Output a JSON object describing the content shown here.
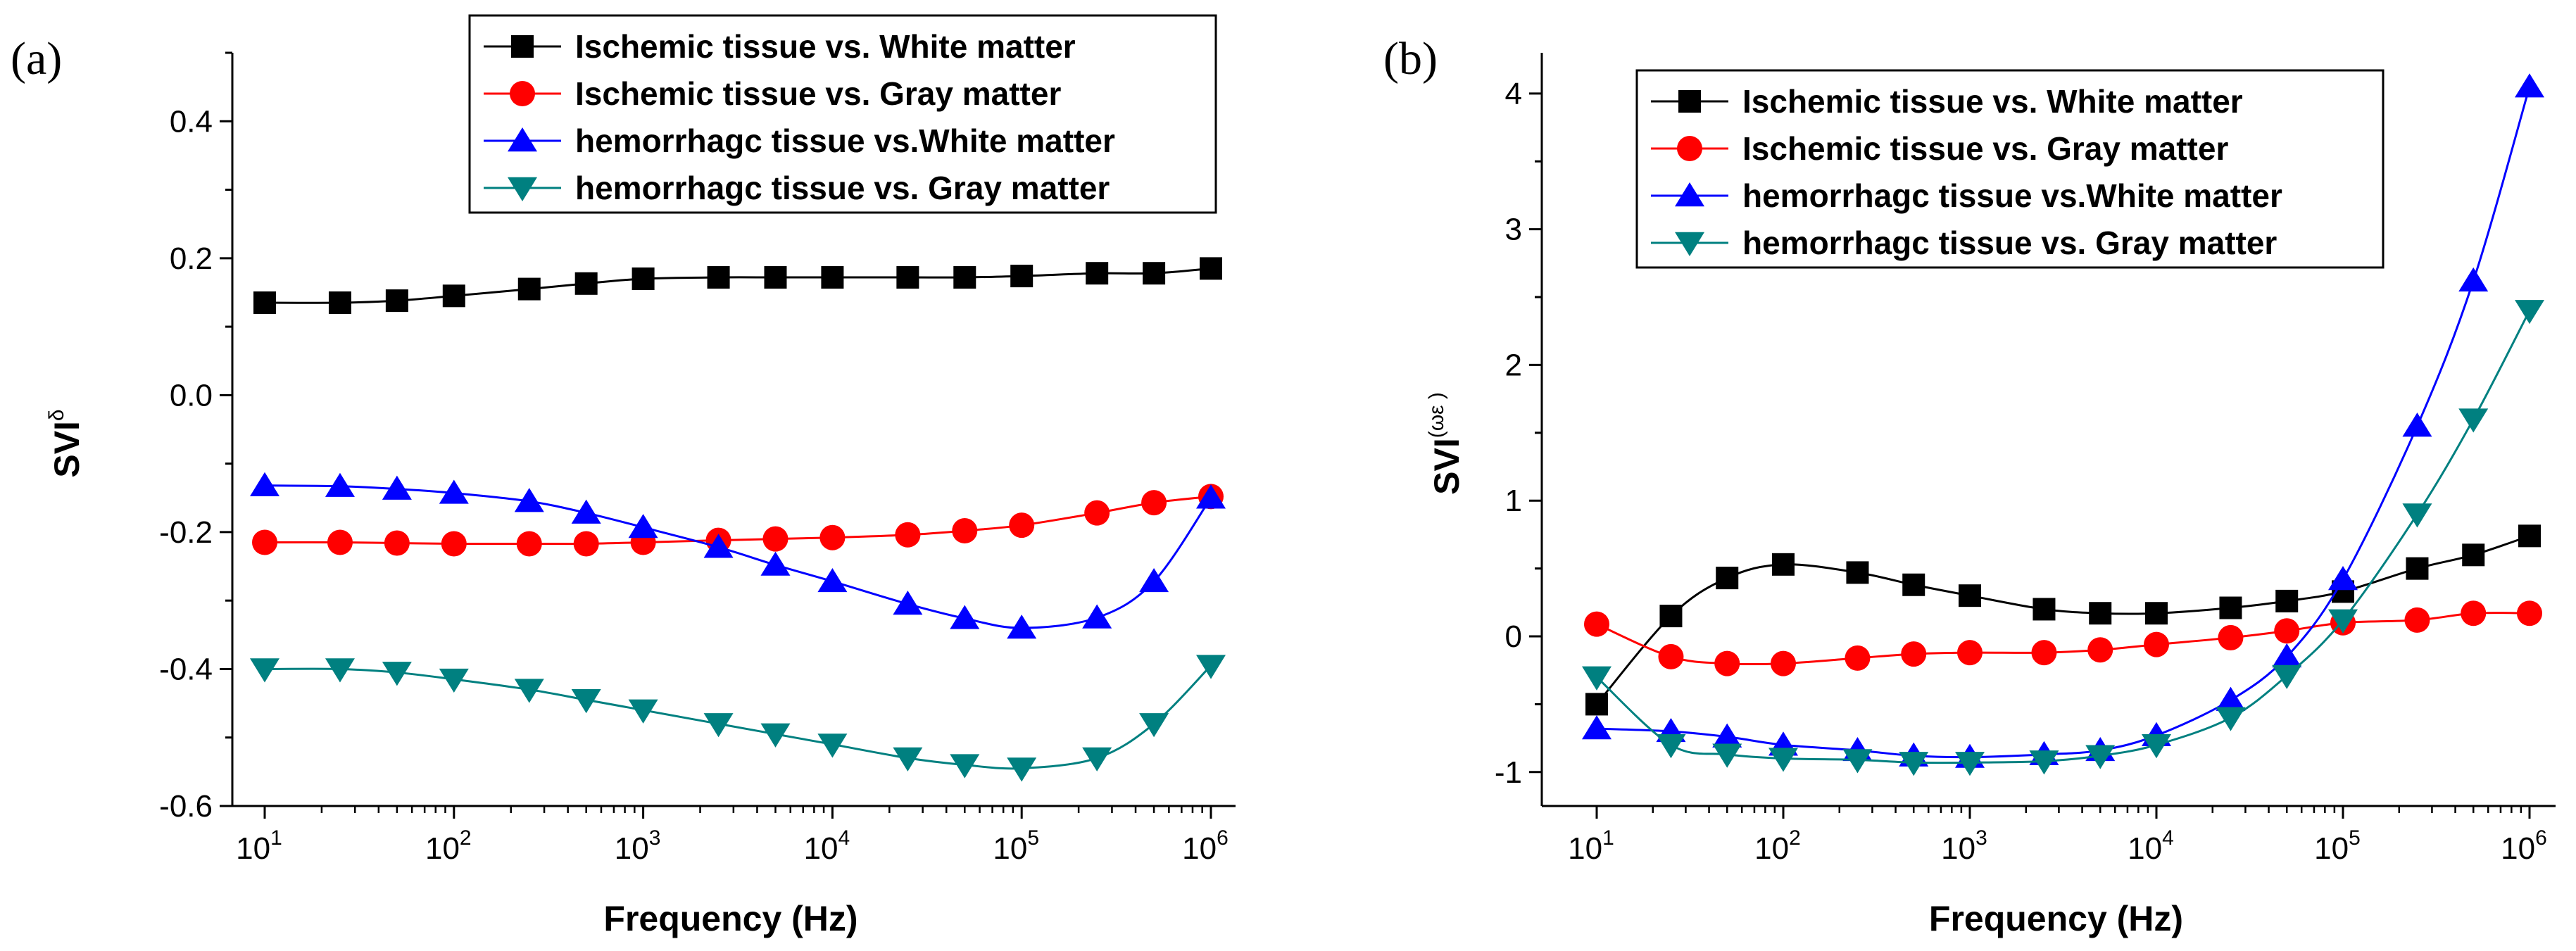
{
  "chart_data": [
    {
      "type": "line",
      "panel_label": "(a)",
      "xlabel": "Frequency (Hz)",
      "ylabel": {
        "base": "SVI",
        "superscript": "δ"
      },
      "xscale": "log",
      "xlim": [
        10,
        1000000
      ],
      "ylim": [
        -0.6,
        0.5
      ],
      "yticks": [
        {
          "value": 0.4,
          "label": "0.4"
        },
        {
          "value": 0.2,
          "label": "0.2"
        },
        {
          "value": 0.0,
          "label": "0.0"
        },
        {
          "value": -0.2,
          "label": "-0.2"
        },
        {
          "value": -0.4,
          "label": "-0.4"
        },
        {
          "value": -0.6,
          "label": "-0.6"
        }
      ],
      "xticks": [
        {
          "value": 10,
          "base": "10",
          "exp": "1"
        },
        {
          "value": 100,
          "base": "10",
          "exp": "2"
        },
        {
          "value": 1000,
          "base": "10",
          "exp": "3"
        },
        {
          "value": 10000,
          "base": "10",
          "exp": "4"
        },
        {
          "value": 100000,
          "base": "10",
          "exp": "5"
        },
        {
          "value": 1000000,
          "base": "10",
          "exp": "6"
        }
      ],
      "legend_position": "top-right",
      "x": [
        10,
        25,
        50,
        100,
        250,
        500,
        1000,
        2500,
        5000,
        10000,
        25000,
        50000,
        100000,
        250000,
        500000,
        1000000
      ],
      "series": [
        {
          "name": "Ischemic tissue vs. White matter",
          "color": "#000000",
          "marker": "square",
          "values": [
            0.135,
            0.135,
            0.138,
            0.145,
            0.155,
            0.163,
            0.17,
            0.172,
            0.172,
            0.172,
            0.172,
            0.172,
            0.174,
            0.178,
            0.178,
            0.185
          ]
        },
        {
          "name": "Ischemic tissue vs. Gray matter",
          "color": "#ff0000",
          "marker": "circle",
          "values": [
            -0.215,
            -0.215,
            -0.216,
            -0.217,
            -0.217,
            -0.217,
            -0.215,
            -0.212,
            -0.21,
            -0.208,
            -0.204,
            -0.198,
            -0.19,
            -0.172,
            -0.157,
            -0.148
          ]
        },
        {
          "name": "hemorrhagc tissue vs.White matter",
          "color": "#0000ff",
          "marker": "triangle-up",
          "values": [
            -0.132,
            -0.133,
            -0.137,
            -0.143,
            -0.155,
            -0.172,
            -0.193,
            -0.222,
            -0.248,
            -0.272,
            -0.305,
            -0.326,
            -0.34,
            -0.325,
            -0.272,
            -0.15
          ]
        },
        {
          "name": "hemorrhagc tissue vs. Gray matter",
          "color": "#008080",
          "marker": "triangle-down",
          "values": [
            -0.4,
            -0.4,
            -0.405,
            -0.415,
            -0.43,
            -0.445,
            -0.46,
            -0.48,
            -0.495,
            -0.51,
            -0.53,
            -0.54,
            -0.545,
            -0.53,
            -0.48,
            -0.395
          ]
        }
      ]
    },
    {
      "type": "line",
      "panel_label": "(b)",
      "xlabel": "Frequency (Hz)",
      "ylabel": {
        "base": "SVI",
        "superscript": "(ωε )"
      },
      "xscale": "log",
      "xlim": [
        10,
        1000000
      ],
      "ylim": [
        -1.25,
        4.3
      ],
      "yticks": [
        {
          "value": 4,
          "label": "4"
        },
        {
          "value": 3,
          "label": "3"
        },
        {
          "value": 2,
          "label": "2"
        },
        {
          "value": 1,
          "label": "1"
        },
        {
          "value": 0,
          "label": "0"
        },
        {
          "value": -1,
          "label": "-1"
        }
      ],
      "xticks": [
        {
          "value": 10,
          "base": "10",
          "exp": "1"
        },
        {
          "value": 100,
          "base": "10",
          "exp": "2"
        },
        {
          "value": 1000,
          "base": "10",
          "exp": "3"
        },
        {
          "value": 10000,
          "base": "10",
          "exp": "4"
        },
        {
          "value": 100000,
          "base": "10",
          "exp": "5"
        },
        {
          "value": 1000000,
          "base": "10",
          "exp": "6"
        }
      ],
      "legend_position": "top-left",
      "x": [
        10,
        25,
        50,
        100,
        250,
        500,
        1000,
        2500,
        5000,
        10000,
        25000,
        50000,
        100000,
        250000,
        500000,
        1000000
      ],
      "series": [
        {
          "name": "Ischemic tissue vs. White matter",
          "color": "#000000",
          "marker": "square",
          "values": [
            -0.5,
            0.15,
            0.43,
            0.53,
            0.47,
            0.38,
            0.3,
            0.2,
            0.17,
            0.17,
            0.21,
            0.26,
            0.33,
            0.5,
            0.6,
            0.74
          ]
        },
        {
          "name": "Ischemic tissue vs. Gray matter",
          "color": "#ff0000",
          "marker": "circle",
          "values": [
            0.09,
            -0.15,
            -0.2,
            -0.2,
            -0.16,
            -0.13,
            -0.12,
            -0.12,
            -0.1,
            -0.06,
            -0.01,
            0.04,
            0.1,
            0.12,
            0.17,
            0.17
          ]
        },
        {
          "name": "hemorrhagc tissue vs.White matter",
          "color": "#0000ff",
          "marker": "triangle-up",
          "values": [
            -0.68,
            -0.7,
            -0.74,
            -0.8,
            -0.84,
            -0.88,
            -0.89,
            -0.87,
            -0.84,
            -0.73,
            -0.47,
            -0.15,
            0.42,
            1.55,
            2.62,
            4.05
          ]
        },
        {
          "name": "hemorrhagc tissue vs. Gray matter",
          "color": "#008080",
          "marker": "triangle-down",
          "values": [
            -0.3,
            -0.8,
            -0.87,
            -0.9,
            -0.91,
            -0.93,
            -0.93,
            -0.92,
            -0.88,
            -0.8,
            -0.6,
            -0.29,
            0.12,
            0.9,
            1.6,
            2.4
          ]
        }
      ]
    }
  ]
}
